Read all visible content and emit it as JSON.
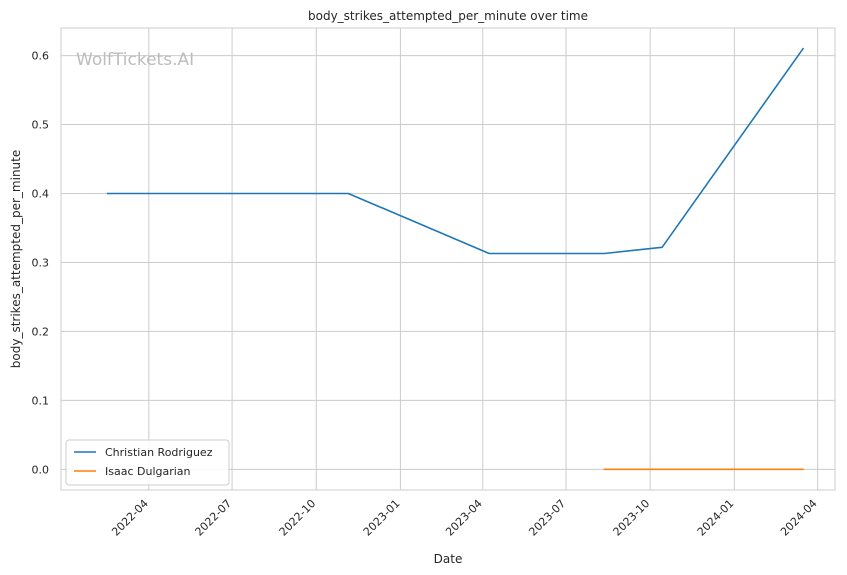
{
  "chart_data": {
    "type": "line",
    "title": "body_strikes_attempted_per_minute over time",
    "xlabel": "Date",
    "ylabel": "body_strikes_attempted_per_minute",
    "watermark": "WolfTickets.AI",
    "xlim": [
      "2021-12-26",
      "2024-04-20"
    ],
    "ylim": [
      -0.03,
      0.64
    ],
    "x_ticks": [
      "2022-04",
      "2022-07",
      "2022-10",
      "2023-01",
      "2023-04",
      "2023-07",
      "2023-10",
      "2024-01",
      "2024-04"
    ],
    "y_ticks": [
      0.0,
      0.1,
      0.2,
      0.3,
      0.4,
      0.5,
      0.6
    ],
    "y_tick_labels": [
      "0.0",
      "0.1",
      "0.2",
      "0.3",
      "0.4",
      "0.5",
      "0.6"
    ],
    "grid": true,
    "legend_position": "lower-left",
    "series": [
      {
        "name": "Christian Rodriguez",
        "color": "#1f77b4",
        "x": [
          "2022-02-15",
          "2022-11-05",
          "2023-04-08",
          "2023-08-12",
          "2023-10-14",
          "2024-03-16"
        ],
        "y": [
          0.4,
          0.4,
          0.313,
          0.313,
          0.322,
          0.61
        ]
      },
      {
        "name": "Isaac Dulgarian",
        "color": "#ff7f0e",
        "x": [
          "2023-08-12",
          "2024-03-16"
        ],
        "y": [
          0.0,
          0.0
        ]
      }
    ]
  }
}
